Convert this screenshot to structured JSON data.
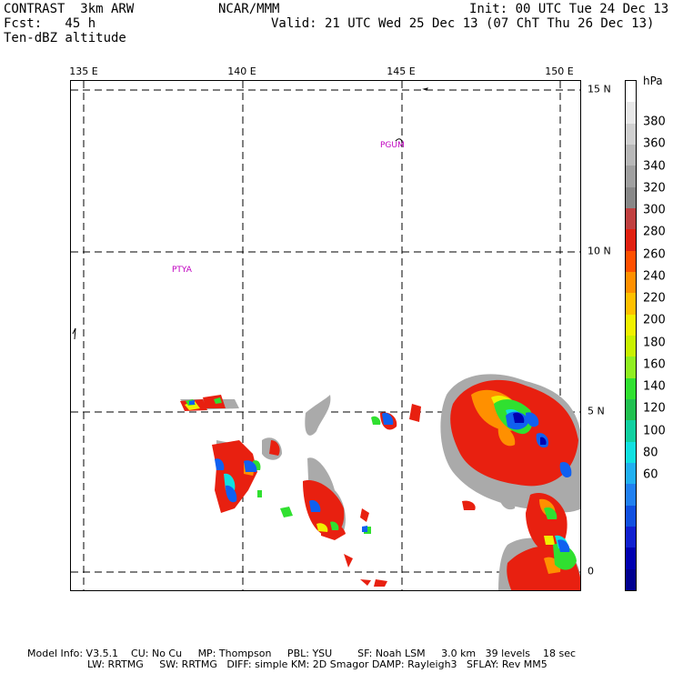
{
  "header": {
    "model": "CONTRAST  3km ARW",
    "center": "NCAR/MMM",
    "init": "Init: 00 UTC Tue 24 Dec 13",
    "fcst": "Fcst:   45 h",
    "valid": "Valid: 21 UTC Wed 25 Dec 13 (07 ChT Thu 26 Dec 13)",
    "field": "Ten-dBZ altitude"
  },
  "map": {
    "lon_labels": [
      "135 E",
      "140 E",
      "145 E",
      "150 E"
    ],
    "lat_labels": [
      "15 N",
      "10 N",
      "5 N",
      "0"
    ],
    "stations": [
      "PGUM",
      "PTYA"
    ]
  },
  "colorbar": {
    "title": "hPa",
    "labels": [
      "380",
      "360",
      "340",
      "320",
      "300",
      "280",
      "260",
      "240",
      "220",
      "200",
      "180",
      "160",
      "140",
      "120",
      "100",
      "80",
      "60"
    ],
    "colors": [
      "#ffffff",
      "#e8e8e8",
      "#d0d0d0",
      "#b8b8b8",
      "#a0a0a0",
      "#888888",
      "#c04040",
      "#e02010",
      "#ff5000",
      "#ff9000",
      "#ffc000",
      "#f0f000",
      "#c8f000",
      "#90ee20",
      "#30e030",
      "#20c050",
      "#10d0a0",
      "#10e0e0",
      "#20b0f0",
      "#2080f0",
      "#1050e0",
      "#1020d0",
      "#0000b0",
      "#000090"
    ]
  },
  "footer": {
    "line1": "Model Info: V3.5.1    CU: No Cu     MP: Thompson     PBL: YSU        SF: Noah LSM     3.0 km   39 levels    18 sec",
    "line2": "LW: RRTMG     SW: RRTMG   DIFF: simple KM: 2D Smagor DAMP: Rayleigh3   SFLAY: Rev MM5"
  }
}
